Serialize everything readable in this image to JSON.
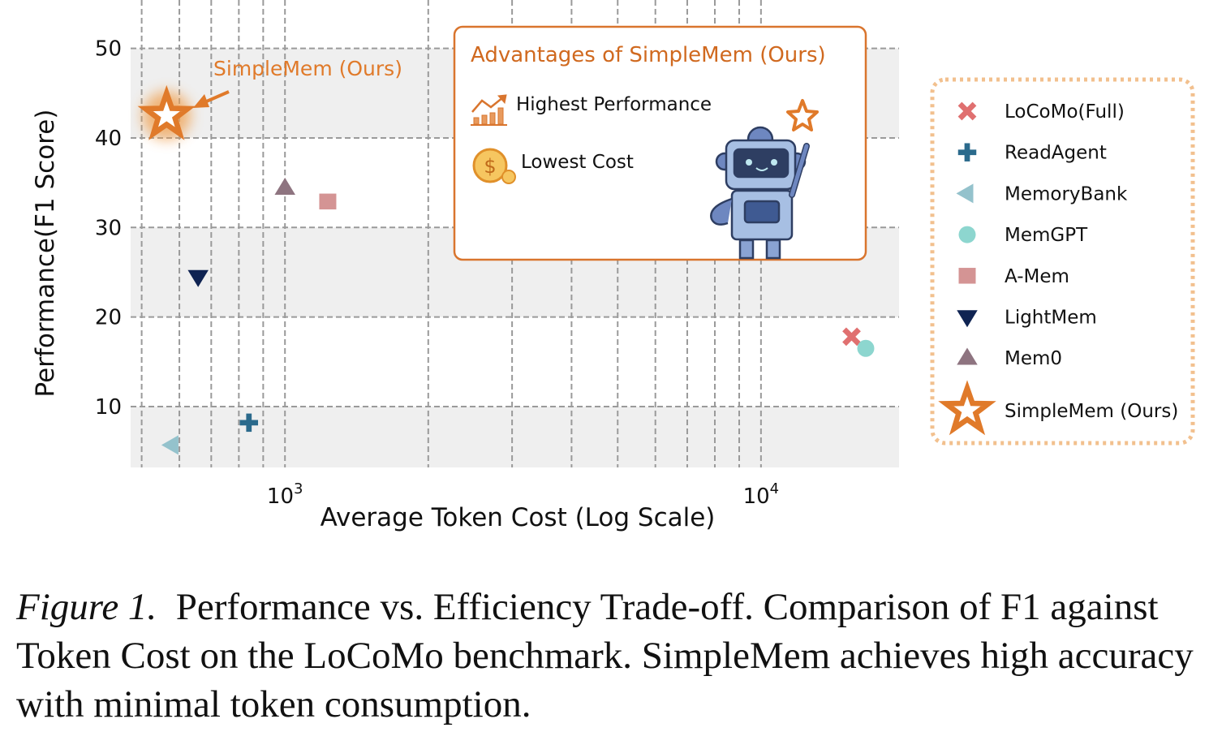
{
  "chart_data": {
    "type": "scatter",
    "xlabel": "Average Token Cost (Log Scale)",
    "ylabel": "Performance(F1 Score)",
    "xscale": "log",
    "xlim": [
      474,
      19500
    ],
    "ylim": [
      3.2,
      54.5
    ],
    "xticks": [
      {
        "value": 1000,
        "base": "10",
        "exp": "3"
      },
      {
        "value": 10000,
        "base": "10",
        "exp": "4"
      }
    ],
    "yticks": [
      10,
      20,
      30,
      40,
      50
    ],
    "grid": true,
    "legend_position": "right",
    "series": [
      {
        "name": "LoCoMo(Full)",
        "x": 15500,
        "y": 17.8,
        "marker": "x",
        "color": "#e07070"
      },
      {
        "name": "ReadAgent",
        "x": 840,
        "y": 8.2,
        "marker": "plus",
        "color": "#2b6a8c"
      },
      {
        "name": "MemoryBank",
        "x": 580,
        "y": 5.7,
        "marker": "triangle-left",
        "color": "#94c2cc"
      },
      {
        "name": "MemGPT",
        "x": 16600,
        "y": 16.5,
        "marker": "circle",
        "color": "#8dd6cf"
      },
      {
        "name": "A-Mem",
        "x": 1230,
        "y": 32.9,
        "marker": "square",
        "color": "#d49494"
      },
      {
        "name": "LightMem",
        "x": 657,
        "y": 24.5,
        "marker": "triangle-down",
        "color": "#0f2352"
      },
      {
        "name": "Mem0",
        "x": 1000,
        "y": 34.4,
        "marker": "triangle-up",
        "color": "#8e7480"
      },
      {
        "name": "SimpleMem (Ours)",
        "x": 564,
        "y": 42.5,
        "marker": "star",
        "color": "#e07a2a"
      }
    ],
    "annotation": "SimpleMem (Ours)",
    "inset": {
      "title": "Advantages of SimpleMem (Ours)",
      "items": [
        "Highest Performance",
        "Lowest Cost"
      ]
    }
  },
  "caption": {
    "label": "Figure 1.",
    "text": "Performance vs. Efficiency Trade-off. Comparison of F1 against Token Cost on the LoCoMo benchmark. SimpleMem achieves high accuracy with minimal token consumption."
  }
}
